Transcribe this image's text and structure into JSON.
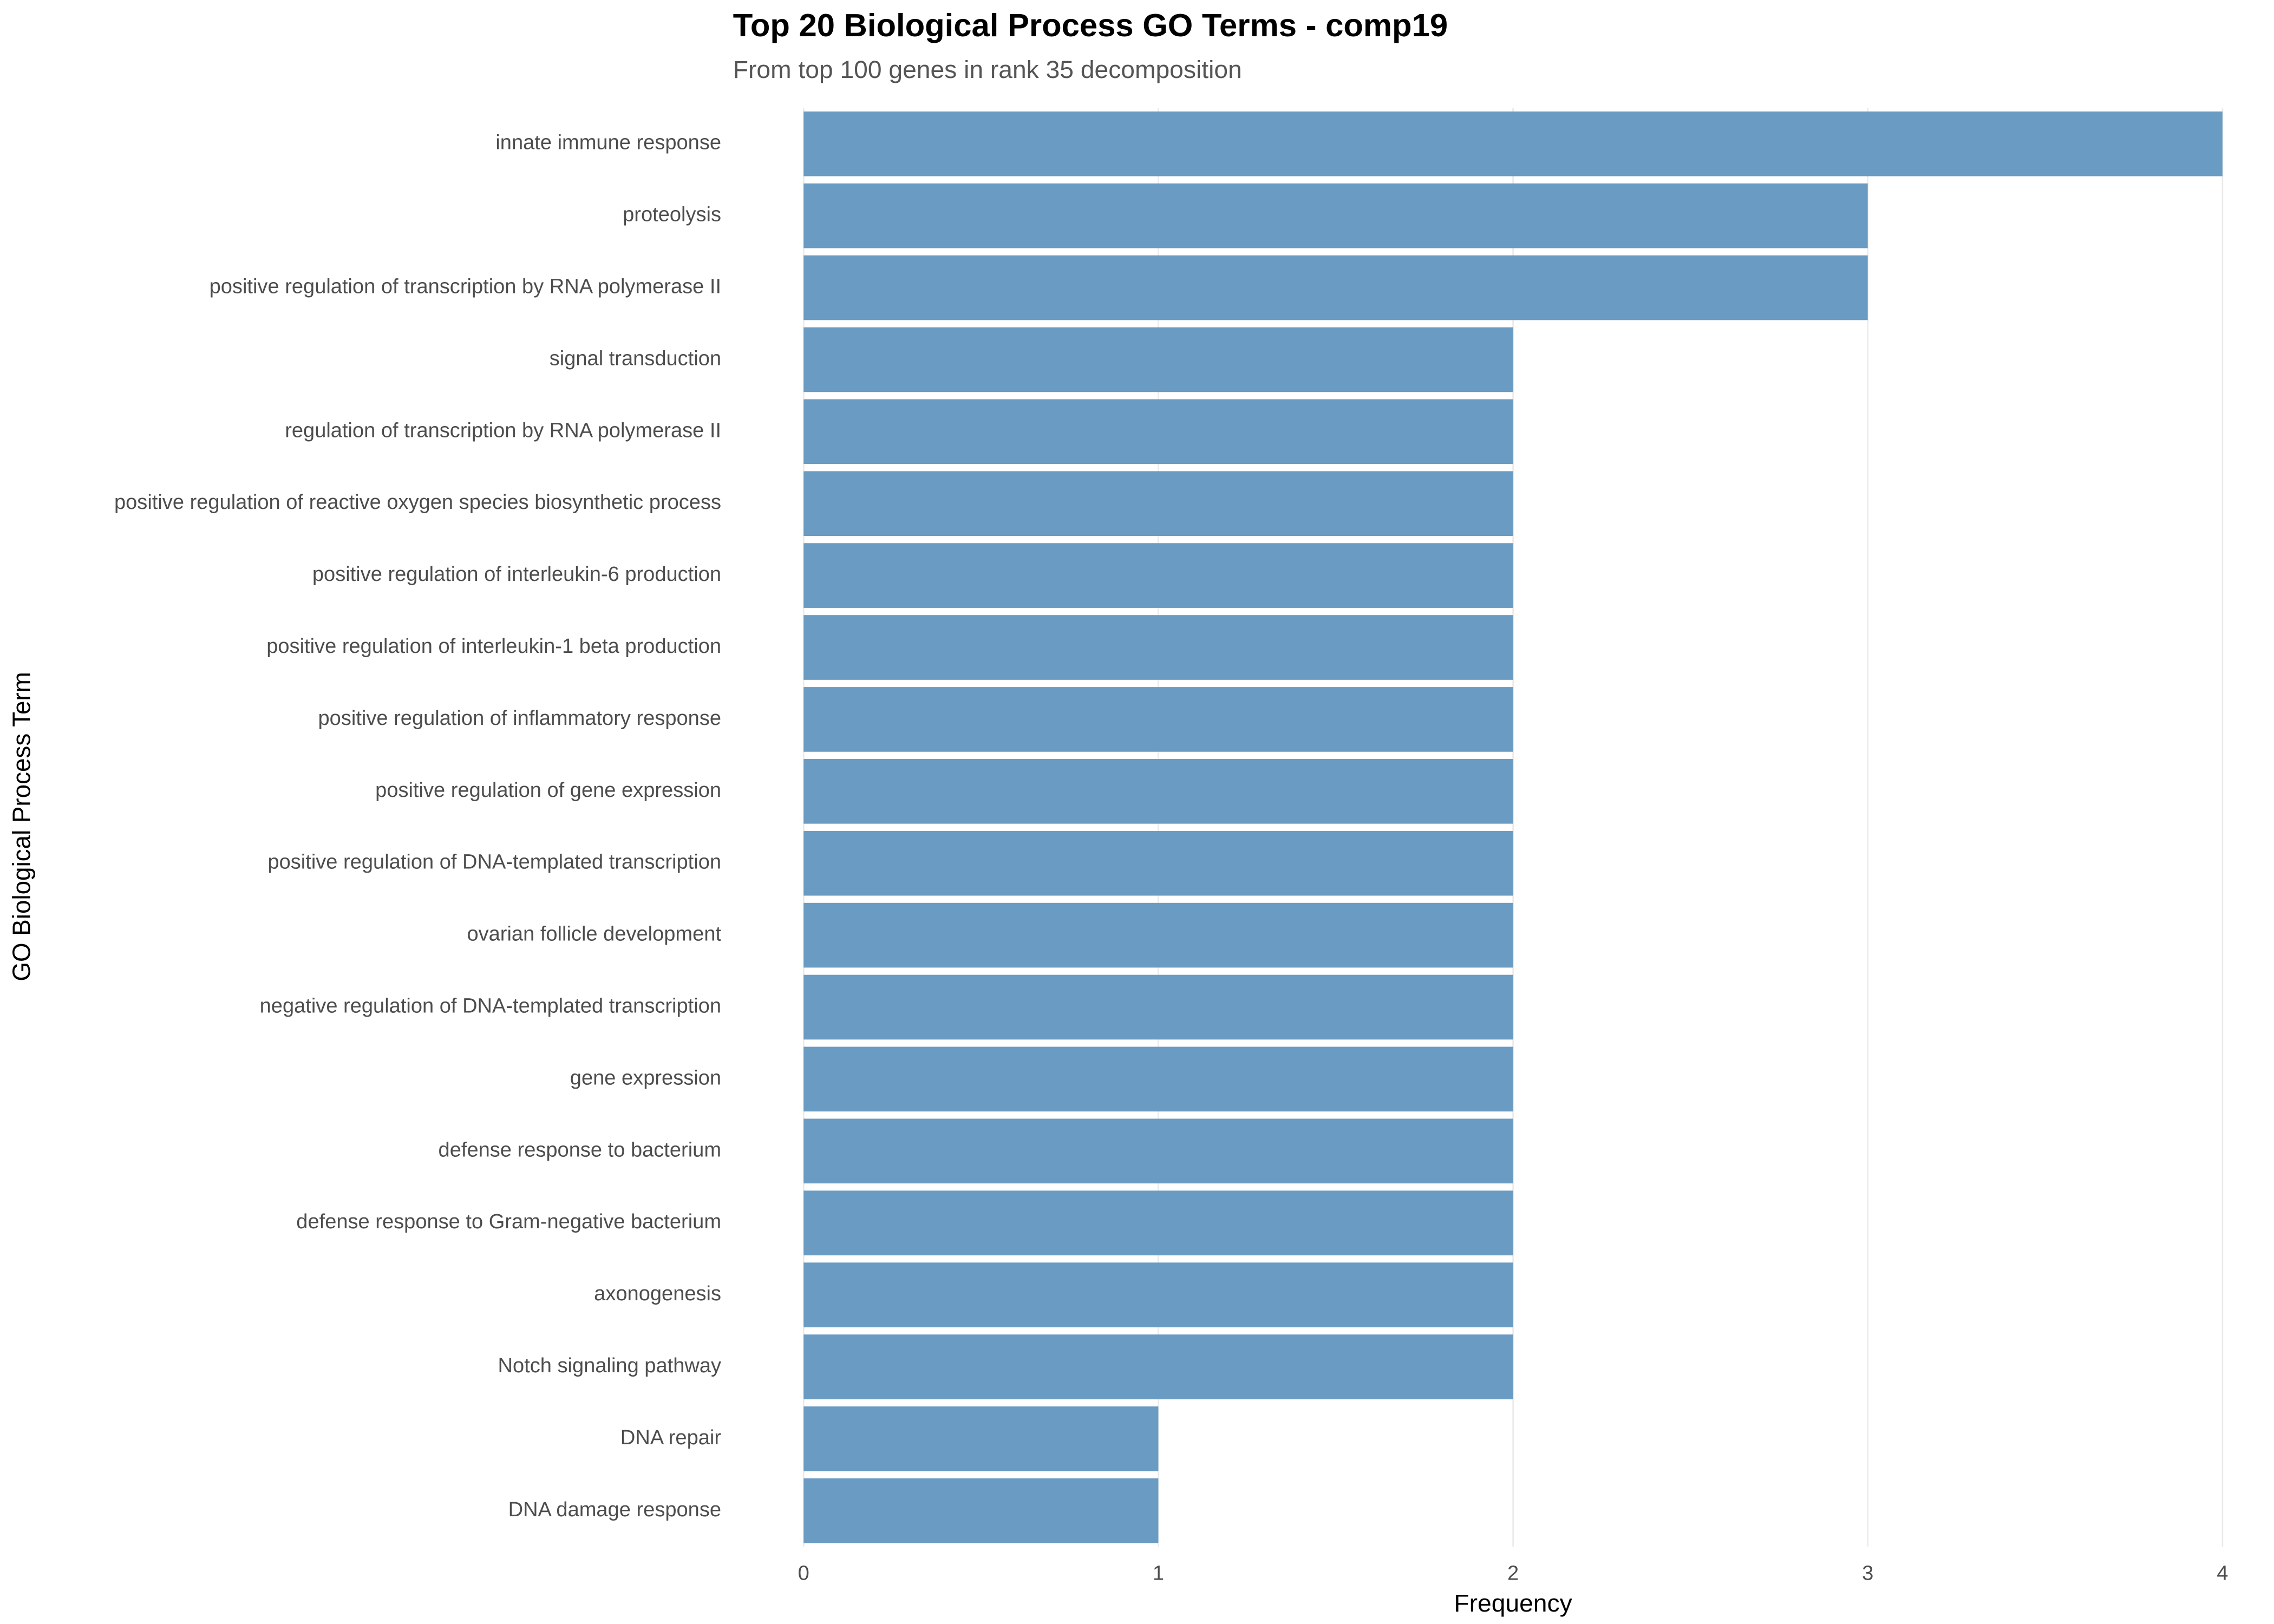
{
  "chart_data": {
    "type": "bar",
    "orientation": "horizontal",
    "title": "Top 20 Biological Process GO Terms - comp19",
    "subtitle": "From top 100 genes in rank 35 decomposition",
    "x_label": "Frequency",
    "y_label": "GO Biological Process Term",
    "categories": [
      "innate immune response",
      "proteolysis",
      "positive regulation of transcription by RNA polymerase II",
      "signal transduction",
      "regulation of transcription by RNA polymerase II",
      "positive regulation of reactive oxygen species biosynthetic process",
      "positive regulation of interleukin-6 production",
      "positive regulation of interleukin-1 beta production",
      "positive regulation of inflammatory response",
      "positive regulation of gene expression",
      "positive regulation of DNA-templated transcription",
      "ovarian follicle development",
      "negative regulation of DNA-templated transcription",
      "gene expression",
      "defense response to bacterium",
      "defense response to Gram-negative bacterium",
      "axonogenesis",
      "Notch signaling pathway",
      "DNA repair",
      "DNA damage response"
    ],
    "values": [
      4,
      3,
      3,
      2,
      2,
      2,
      2,
      2,
      2,
      2,
      2,
      2,
      2,
      2,
      2,
      2,
      2,
      2,
      1,
      1
    ],
    "color": "#6a9bc3",
    "xlim": [
      0,
      4
    ],
    "xticks": [
      0,
      1,
      2,
      3,
      4
    ],
    "grid": true
  }
}
